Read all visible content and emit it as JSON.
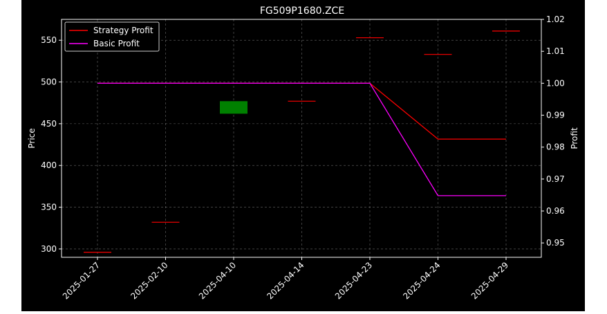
{
  "chart_data": {
    "type": "candlestick",
    "title": "FG509P1680.ZCE",
    "xlabel": "",
    "ylabel": "Price",
    "y2label": "Profit",
    "ylim": [
      290,
      575
    ],
    "y2lim": [
      0.9455,
      1.02
    ],
    "yticks": [
      300,
      350,
      400,
      450,
      500,
      550
    ],
    "y2ticks": [
      "0.95",
      "0.96",
      "0.97",
      "0.98",
      "0.99",
      "1.00",
      "1.01",
      "1.02"
    ],
    "categories": [
      "2025-01-27",
      "2025-02-10",
      "2025-04-10",
      "2025-04-14",
      "2025-04-23",
      "2025-04-24",
      "2025-04-29"
    ],
    "candles": [
      {
        "open": 296,
        "close": 296
      },
      {
        "open": 332,
        "close": 332
      },
      {
        "open": 462,
        "close": 477
      },
      {
        "open": 477,
        "close": 477
      },
      {
        "open": 553,
        "close": 553
      },
      {
        "open": 533,
        "close": 533
      },
      {
        "open": 561,
        "close": 561
      }
    ],
    "series": [
      {
        "name": "Strategy Profit",
        "color": "#ff0000",
        "values": [
          1.0,
          1.0,
          1.0,
          1.0,
          1.0,
          0.9825,
          0.9825
        ]
      },
      {
        "name": "Basic Profit",
        "color": "#ff00ff",
        "values": [
          1.0,
          1.0,
          1.0,
          1.0,
          1.0,
          0.9648,
          0.9648
        ]
      }
    ],
    "grid": true,
    "legend": "top-left",
    "colors": {
      "up": "#008000",
      "flat": "#ff0000",
      "background": "#000000",
      "grid": "#b0b0b0"
    }
  }
}
